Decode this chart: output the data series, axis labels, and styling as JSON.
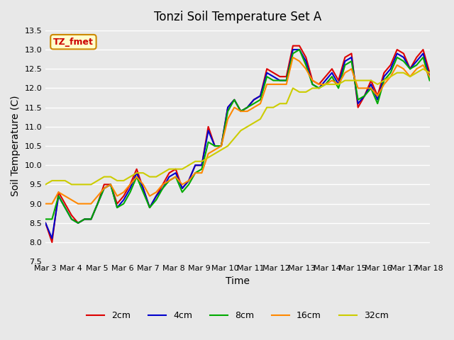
{
  "title": "Tonzi Soil Temperature Set A",
  "xlabel": "Time",
  "ylabel": "Soil Temperature (C)",
  "ylim": [
    7.5,
    13.5
  ],
  "yticks": [
    7.5,
    8.0,
    8.5,
    9.0,
    9.5,
    10.0,
    10.5,
    11.0,
    11.5,
    12.0,
    12.5,
    13.0,
    13.5
  ],
  "x_labels": [
    "Mar 3",
    "Mar 4",
    "Mar 5",
    "Mar 6",
    "Mar 7",
    "Mar 8",
    "Mar 9",
    "Mar 10",
    "Mar 11",
    "Mar 12",
    "Mar 13",
    "Mar 14",
    "Mar 15",
    "Mar 16",
    "Mar 17",
    "Mar 18"
  ],
  "series_colors": [
    "#dd0000",
    "#0000cc",
    "#00aa00",
    "#ff8800",
    "#cccc00"
  ],
  "series_labels": [
    "2cm",
    "4cm",
    "8cm",
    "16cm",
    "32cm"
  ],
  "annotation_text": "TZ_fmet",
  "annotation_bg": "#ffffcc",
  "annotation_border": "#cc8800",
  "annotation_text_color": "#cc0000",
  "background_color": "#e8e8e8",
  "grid_color": "#ffffff",
  "line_width": 1.5,
  "series_2cm": [
    8.5,
    8.0,
    9.3,
    9.0,
    8.7,
    8.5,
    8.6,
    8.6,
    9.0,
    9.5,
    9.5,
    9.0,
    9.2,
    9.5,
    9.9,
    9.4,
    8.9,
    9.2,
    9.5,
    9.8,
    9.9,
    9.4,
    9.6,
    10.0,
    10.0,
    11.0,
    10.5,
    10.5,
    11.5,
    11.7,
    11.4,
    11.5,
    11.7,
    11.8,
    12.5,
    12.4,
    12.3,
    12.3,
    13.1,
    13.1,
    12.8,
    12.2,
    12.1,
    12.3,
    12.5,
    12.2,
    12.8,
    12.9,
    11.5,
    11.8,
    12.2,
    11.8,
    12.4,
    12.6,
    13.0,
    12.9,
    12.5,
    12.8,
    13.0,
    12.4
  ],
  "series_4cm": [
    8.5,
    8.1,
    9.2,
    8.9,
    8.6,
    8.5,
    8.6,
    8.6,
    9.0,
    9.4,
    9.5,
    8.9,
    9.1,
    9.4,
    9.8,
    9.4,
    8.9,
    9.2,
    9.4,
    9.7,
    9.8,
    9.4,
    9.6,
    10.0,
    10.0,
    10.9,
    10.5,
    10.5,
    11.5,
    11.7,
    11.4,
    11.5,
    11.7,
    11.8,
    12.4,
    12.3,
    12.2,
    12.2,
    13.0,
    13.0,
    12.7,
    12.1,
    12.0,
    12.2,
    12.4,
    12.1,
    12.7,
    12.8,
    11.6,
    11.8,
    12.1,
    11.7,
    12.3,
    12.5,
    12.9,
    12.8,
    12.5,
    12.7,
    12.9,
    12.3
  ],
  "series_8cm": [
    8.6,
    8.6,
    9.2,
    8.9,
    8.6,
    8.5,
    8.6,
    8.6,
    9.0,
    9.4,
    9.5,
    8.9,
    9.0,
    9.3,
    9.7,
    9.3,
    8.9,
    9.1,
    9.4,
    9.6,
    9.7,
    9.3,
    9.5,
    9.8,
    9.9,
    10.6,
    10.5,
    10.5,
    11.4,
    11.7,
    11.4,
    11.5,
    11.6,
    11.7,
    12.3,
    12.2,
    12.2,
    12.2,
    12.9,
    13.0,
    12.6,
    12.1,
    12.0,
    12.1,
    12.3,
    12.0,
    12.6,
    12.7,
    11.7,
    11.8,
    12.0,
    11.6,
    12.2,
    12.4,
    12.8,
    12.7,
    12.5,
    12.6,
    12.8,
    12.2
  ],
  "series_16cm": [
    9.0,
    9.0,
    9.3,
    9.2,
    9.1,
    9.0,
    9.0,
    9.0,
    9.2,
    9.4,
    9.5,
    9.2,
    9.3,
    9.5,
    9.7,
    9.5,
    9.2,
    9.3,
    9.5,
    9.6,
    9.7,
    9.5,
    9.6,
    9.8,
    9.8,
    10.3,
    10.4,
    10.5,
    11.2,
    11.5,
    11.4,
    11.4,
    11.5,
    11.6,
    12.1,
    12.1,
    12.1,
    12.1,
    12.8,
    12.7,
    12.5,
    12.2,
    12.1,
    12.1,
    12.2,
    12.1,
    12.4,
    12.5,
    12.0,
    12.0,
    12.0,
    11.8,
    12.1,
    12.3,
    12.6,
    12.5,
    12.3,
    12.5,
    12.6,
    12.3
  ],
  "series_32cm": [
    9.5,
    9.6,
    9.6,
    9.6,
    9.5,
    9.5,
    9.5,
    9.5,
    9.6,
    9.7,
    9.7,
    9.6,
    9.6,
    9.7,
    9.8,
    9.8,
    9.7,
    9.7,
    9.8,
    9.9,
    9.9,
    9.9,
    10.0,
    10.1,
    10.1,
    10.2,
    10.3,
    10.4,
    10.5,
    10.7,
    10.9,
    11.0,
    11.1,
    11.2,
    11.5,
    11.5,
    11.6,
    11.6,
    12.0,
    11.9,
    11.9,
    12.0,
    12.0,
    12.1,
    12.1,
    12.1,
    12.2,
    12.2,
    12.2,
    12.2,
    12.2,
    12.1,
    12.2,
    12.3,
    12.4,
    12.4,
    12.3,
    12.4,
    12.5,
    12.4
  ]
}
